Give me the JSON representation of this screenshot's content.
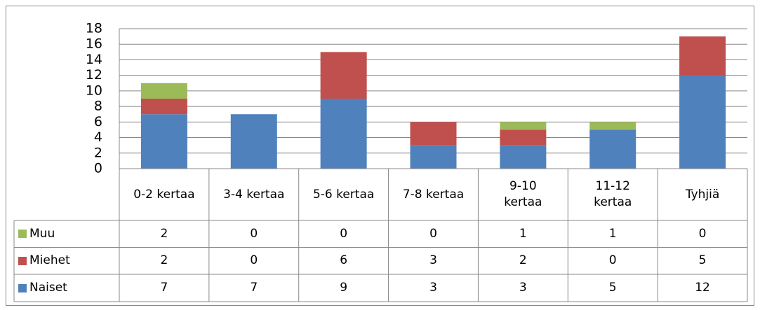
{
  "chart_data": {
    "type": "stacked_bar",
    "categories": [
      "0-2 kertaa",
      "3-4 kertaa",
      "5-6 kertaa",
      "7-8 kertaa",
      "9-10\nkertaa",
      "11-12\nkertaa",
      "Tyhjiä"
    ],
    "series": [
      {
        "name": "Naiset",
        "color": "#4f81bd",
        "values": [
          7,
          7,
          9,
          3,
          3,
          5,
          12
        ]
      },
      {
        "name": "Miehet",
        "color": "#c0504d",
        "values": [
          2,
          0,
          6,
          3,
          2,
          0,
          5
        ]
      },
      {
        "name": "Muu",
        "color": "#9bbb59",
        "values": [
          2,
          0,
          0,
          0,
          1,
          1,
          0
        ]
      }
    ],
    "ylim": [
      0,
      18
    ],
    "yticks": [
      0,
      2,
      4,
      6,
      8,
      10,
      12,
      14,
      16,
      18
    ],
    "grid": true,
    "data_table": true
  }
}
